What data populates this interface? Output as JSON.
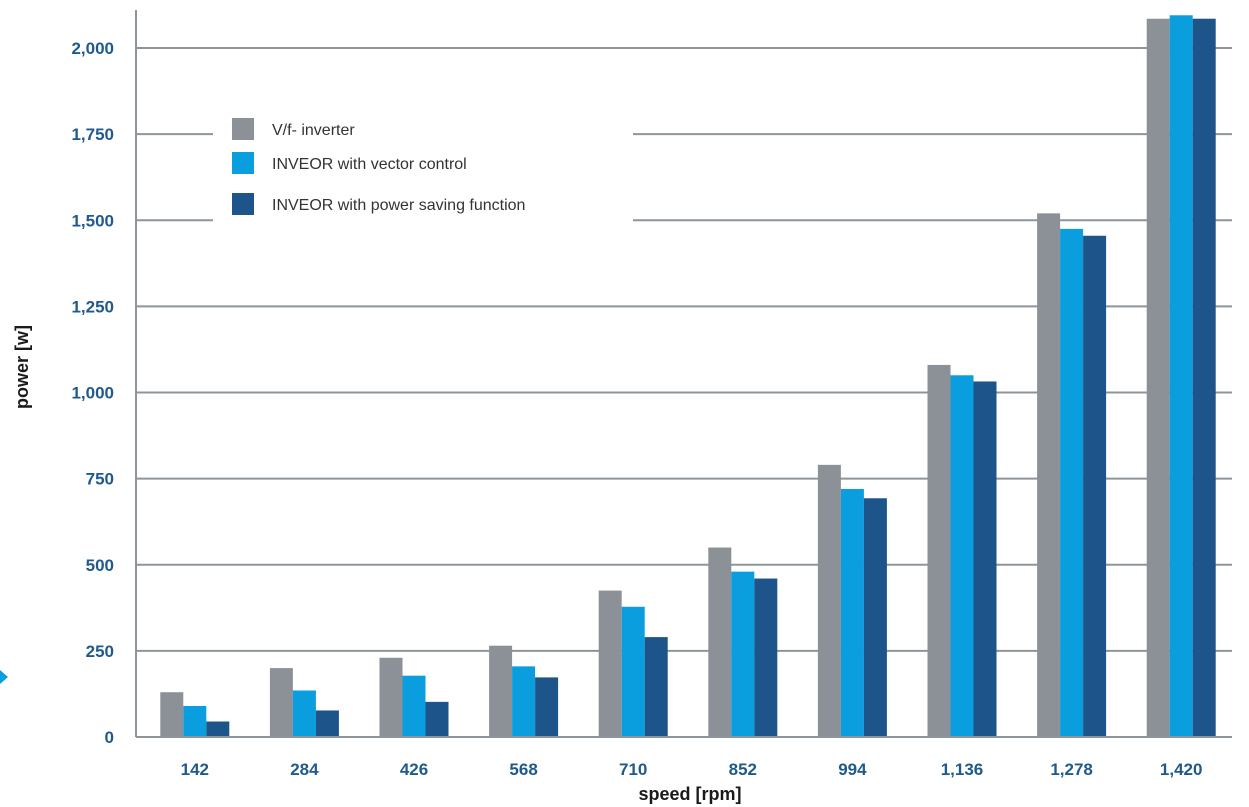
{
  "chart_data": {
    "type": "bar",
    "xlabel": "speed [rpm]",
    "ylabel": "power [w]",
    "categories": [
      "142",
      "284",
      "426",
      "568",
      "710",
      "852",
      "994",
      "1,136",
      "1,278",
      "1,420"
    ],
    "ylim": [
      0,
      2000
    ],
    "yticks": [
      0,
      250,
      500,
      750,
      1000,
      1250,
      1500,
      1750,
      2000
    ],
    "ytick_labels": [
      "0",
      "250",
      "500",
      "750",
      "1,000",
      "1,250",
      "1,500",
      "1,750",
      "2,000"
    ],
    "grid": true,
    "legend_position": "top-left",
    "series": [
      {
        "name": "V/f- inverter",
        "color": "#8b9196",
        "values": [
          130,
          200,
          230,
          265,
          425,
          550,
          790,
          1080,
          1520,
          2085
        ]
      },
      {
        "name": "INVEOR with vector control",
        "color": "#0a9ede",
        "values": [
          90,
          135,
          178,
          205,
          378,
          480,
          720,
          1050,
          1475,
          2095
        ]
      },
      {
        "name": "INVEOR with power saving function",
        "color": "#1d5489",
        "values": [
          45,
          77,
          102,
          173,
          290,
          460,
          693,
          1032,
          1455,
          2085
        ]
      }
    ]
  }
}
